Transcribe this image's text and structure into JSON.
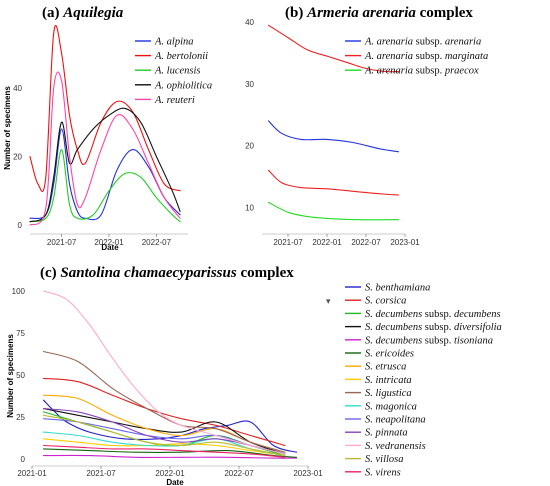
{
  "chart_data": [
    {
      "id": "a",
      "type": "line",
      "title_prefix": "(a)",
      "title_main": "Aquilegia",
      "title_suffix": "",
      "xlabel": "Date",
      "ylabel": "Number of specimens",
      "xticks": [
        "2021-07",
        "2022-01",
        "2022-07"
      ],
      "yticks": [
        0,
        20,
        40
      ],
      "x_range": [
        "2021-03",
        "2022-11"
      ],
      "ylim": [
        -2,
        58
      ],
      "grid": false,
      "legend_position": "top-right",
      "series": [
        {
          "name": "A. alpina",
          "color": "#2233dd",
          "x": [
            "2021-03",
            "2021-05",
            "2021-06",
            "2021-07",
            "2021-08",
            "2021-09",
            "2021-10",
            "2021-12",
            "2022-02",
            "2022-04",
            "2022-06",
            "2022-08",
            "2022-10"
          ],
          "values": [
            2,
            3,
            12,
            28,
            12,
            4,
            2,
            3,
            16,
            22,
            17,
            8,
            3
          ]
        },
        {
          "name": "A. bertolonii",
          "color": "#ee1111",
          "x": [
            "2021-03",
            "2021-04",
            "2021-05",
            "2021-06",
            "2021-07",
            "2021-08",
            "2021-09",
            "2021-10",
            "2021-12",
            "2022-02",
            "2022-04",
            "2022-06",
            "2022-08",
            "2022-10"
          ],
          "values": [
            20,
            12,
            14,
            56,
            50,
            32,
            22,
            18,
            30,
            36,
            33,
            22,
            12,
            10
          ]
        },
        {
          "name": "A. lucensis",
          "color": "#22cc22",
          "x": [
            "2021-03",
            "2021-05",
            "2021-06",
            "2021-07",
            "2021-08",
            "2021-09",
            "2021-11",
            "2022-01",
            "2022-03",
            "2022-05",
            "2022-07",
            "2022-09",
            "2022-10"
          ],
          "values": [
            1,
            2,
            8,
            22,
            6,
            2,
            3,
            10,
            15,
            14,
            8,
            3,
            1
          ]
        },
        {
          "name": "A. ophiolitica",
          "color": "#111111",
          "x": [
            "2021-03",
            "2021-05",
            "2021-06",
            "2021-07",
            "2021-08",
            "2021-09",
            "2021-11",
            "2022-01",
            "2022-03",
            "2022-05",
            "2022-07",
            "2022-09",
            "2022-10"
          ],
          "values": [
            1,
            3,
            14,
            30,
            18,
            22,
            28,
            32,
            34,
            30,
            20,
            10,
            4
          ]
        },
        {
          "name": "A. reuteri",
          "color": "#ff44aa",
          "x": [
            "2021-03",
            "2021-05",
            "2021-06",
            "2021-07",
            "2021-08",
            "2021-09",
            "2021-10",
            "2021-12",
            "2022-02",
            "2022-04",
            "2022-06",
            "2022-08",
            "2022-10"
          ],
          "values": [
            0,
            5,
            40,
            42,
            20,
            6,
            8,
            22,
            32,
            28,
            18,
            8,
            2
          ]
        }
      ]
    },
    {
      "id": "b",
      "type": "line",
      "title_prefix": "(b)",
      "title_main": "Armeria arenaria",
      "title_suffix": "complex",
      "xlabel": "",
      "ylabel": "",
      "xticks": [
        "2021-07",
        "2022-01",
        "2022-07",
        "2023-01"
      ],
      "yticks": [
        10,
        20,
        30,
        40
      ],
      "x_range": [
        "2021-03",
        "2023-01"
      ],
      "ylim": [
        6,
        41
      ],
      "grid": false,
      "legend_position": "top-right",
      "series": [
        {
          "name": "A. arenaria subsp. arenaria",
          "color": "#2233dd",
          "x": [
            "2021-04",
            "2021-06",
            "2021-09",
            "2022-01",
            "2022-05",
            "2022-09",
            "2022-12"
          ],
          "values": [
            24,
            22,
            21,
            21,
            20.5,
            19.5,
            19
          ]
        },
        {
          "name": "A. arenaria subsp. marginata",
          "color": "#ee2222",
          "x": [
            "2021-04",
            "2021-07",
            "2021-10",
            "2022-01",
            "2022-04",
            "2022-07",
            "2022-10",
            "2022-12"
          ],
          "values": [
            39.5,
            37.5,
            35.5,
            34.5,
            33.5,
            32.5,
            32,
            32
          ]
        },
        {
          "name": "",
          "color": "#ee2222",
          "x": [
            "2021-04",
            "2021-06",
            "2021-09",
            "2022-01",
            "2022-05",
            "2022-09",
            "2022-12"
          ],
          "values": [
            16,
            14,
            13.2,
            13,
            12.6,
            12.2,
            12
          ]
        },
        {
          "name": "A. arenaria subsp. praecox",
          "color": "#22dd22",
          "x": [
            "2021-04",
            "2021-07",
            "2021-10",
            "2022-01",
            "2022-06",
            "2022-12"
          ],
          "values": [
            10.8,
            9.2,
            8.5,
            8.2,
            8,
            8
          ]
        }
      ]
    },
    {
      "id": "c",
      "type": "line",
      "title_prefix": "(c)",
      "title_main": "Santolina chamaecyparissus",
      "title_suffix": "complex",
      "xlabel": "Date",
      "ylabel": "Number of specimens",
      "xticks": [
        "2021-01",
        "2021-07",
        "2022-01",
        "2022-07",
        "2023-01"
      ],
      "yticks": [
        0,
        25,
        50,
        75,
        100
      ],
      "x_range": [
        "2021-01",
        "2023-01"
      ],
      "ylim": [
        -3,
        103
      ],
      "grid": false,
      "legend_position": "right",
      "series": [
        {
          "name": "S. benthamiana",
          "color": "#2222cc",
          "x": [
            "2021-02",
            "2021-03",
            "2021-04",
            "2021-06",
            "2021-09",
            "2021-12",
            "2022-02",
            "2022-04",
            "2022-06",
            "2022-08",
            "2022-10",
            "2022-12"
          ],
          "values": [
            35,
            28,
            22,
            16,
            12,
            12,
            14,
            18,
            20,
            22,
            8,
            4
          ]
        },
        {
          "name": "S. corsica",
          "color": "#dd2222",
          "x": [
            "2021-02",
            "2021-05",
            "2021-08",
            "2021-11",
            "2022-02",
            "2022-05",
            "2022-08",
            "2022-11"
          ],
          "values": [
            48,
            46,
            38,
            30,
            24,
            20,
            14,
            8
          ]
        },
        {
          "name": "S. decumbens subsp. decumbens",
          "color": "#22bb22",
          "x": [
            "2021-02",
            "2021-05",
            "2021-08",
            "2021-11",
            "2022-02",
            "2022-05",
            "2022-08",
            "2022-11"
          ],
          "values": [
            28,
            22,
            16,
            10,
            8,
            14,
            8,
            2
          ]
        },
        {
          "name": "S. decumbens subsp. diversifolia",
          "color": "#111111",
          "x": [
            "2021-02",
            "2021-05",
            "2021-08",
            "2021-11",
            "2022-02",
            "2022-05",
            "2022-08",
            "2022-11"
          ],
          "values": [
            30,
            26,
            22,
            18,
            16,
            22,
            10,
            3
          ]
        },
        {
          "name": "S. decumbens subsp. tisoniana",
          "color": "#cc22cc",
          "x": [
            "2021-02",
            "2021-06",
            "2021-10",
            "2022-02",
            "2022-06",
            "2022-10",
            "2022-12"
          ],
          "values": [
            2,
            2,
            1,
            1,
            1,
            0.5,
            0.5
          ]
        },
        {
          "name": "S. ericoides",
          "color": "#116611",
          "x": [
            "2021-02",
            "2021-06",
            "2021-10",
            "2022-02",
            "2022-06",
            "2022-10",
            "2022-12"
          ],
          "values": [
            6,
            5,
            4,
            4,
            5,
            2,
            1
          ]
        },
        {
          "name": "S. etrusca",
          "color": "#ffaa00",
          "x": [
            "2021-02",
            "2021-05",
            "2021-08",
            "2021-11",
            "2022-02",
            "2022-05",
            "2022-08",
            "2022-11"
          ],
          "values": [
            38,
            36,
            26,
            18,
            14,
            18,
            10,
            4
          ]
        },
        {
          "name": "S. intricata",
          "color": "#ffcc00",
          "x": [
            "2021-02",
            "2021-05",
            "2021-08",
            "2021-11",
            "2022-02",
            "2022-05",
            "2022-08",
            "2022-11"
          ],
          "values": [
            12,
            10,
            8,
            8,
            9,
            8,
            5,
            2
          ]
        },
        {
          "name": "S. ligustica",
          "color": "#996655",
          "x": [
            "2021-02",
            "2021-05",
            "2021-08",
            "2021-11",
            "2022-02",
            "2022-05",
            "2022-08",
            "2022-11"
          ],
          "values": [
            64,
            58,
            42,
            30,
            20,
            18,
            10,
            4
          ]
        },
        {
          "name": "S. magonica",
          "color": "#33ddcc",
          "x": [
            "2021-02",
            "2021-05",
            "2021-08",
            "2021-11",
            "2022-02",
            "2022-05",
            "2022-08",
            "2022-11"
          ],
          "values": [
            16,
            14,
            10,
            8,
            8,
            12,
            6,
            2
          ]
        },
        {
          "name": "S. neapolitana",
          "color": "#6666ee",
          "x": [
            "2021-02",
            "2021-05",
            "2021-08",
            "2021-11",
            "2022-02",
            "2022-05",
            "2022-08",
            "2022-11"
          ],
          "values": [
            24,
            22,
            18,
            14,
            12,
            14,
            8,
            3
          ]
        },
        {
          "name": "S. pinnata",
          "color": "#8844bb",
          "x": [
            "2021-02",
            "2021-05",
            "2021-08",
            "2021-11",
            "2022-02",
            "2022-05",
            "2022-08",
            "2022-11"
          ],
          "values": [
            30,
            28,
            22,
            14,
            10,
            12,
            8,
            3
          ]
        },
        {
          "name": "S. vedranensis",
          "color": "#ffaacc",
          "x": [
            "2021-02",
            "2021-04",
            "2021-06",
            "2021-08",
            "2021-10",
            "2021-12",
            "2022-02",
            "2022-05",
            "2022-08",
            "2022-11"
          ],
          "values": [
            100,
            95,
            80,
            60,
            42,
            28,
            20,
            14,
            8,
            3
          ]
        },
        {
          "name": "S. villosa",
          "color": "#bbbb33",
          "x": [
            "2021-02",
            "2021-05",
            "2021-08",
            "2021-11",
            "2022-02",
            "2022-05",
            "2022-08",
            "2022-11"
          ],
          "values": [
            26,
            22,
            16,
            10,
            8,
            10,
            6,
            2
          ]
        },
        {
          "name": "S. virens",
          "color": "#ee2266",
          "x": [
            "2021-02",
            "2021-05",
            "2021-08",
            "2021-11",
            "2022-02",
            "2022-05",
            "2022-08",
            "2022-11"
          ],
          "values": [
            8,
            7,
            6,
            6,
            5,
            4,
            3,
            1
          ]
        }
      ]
    }
  ]
}
